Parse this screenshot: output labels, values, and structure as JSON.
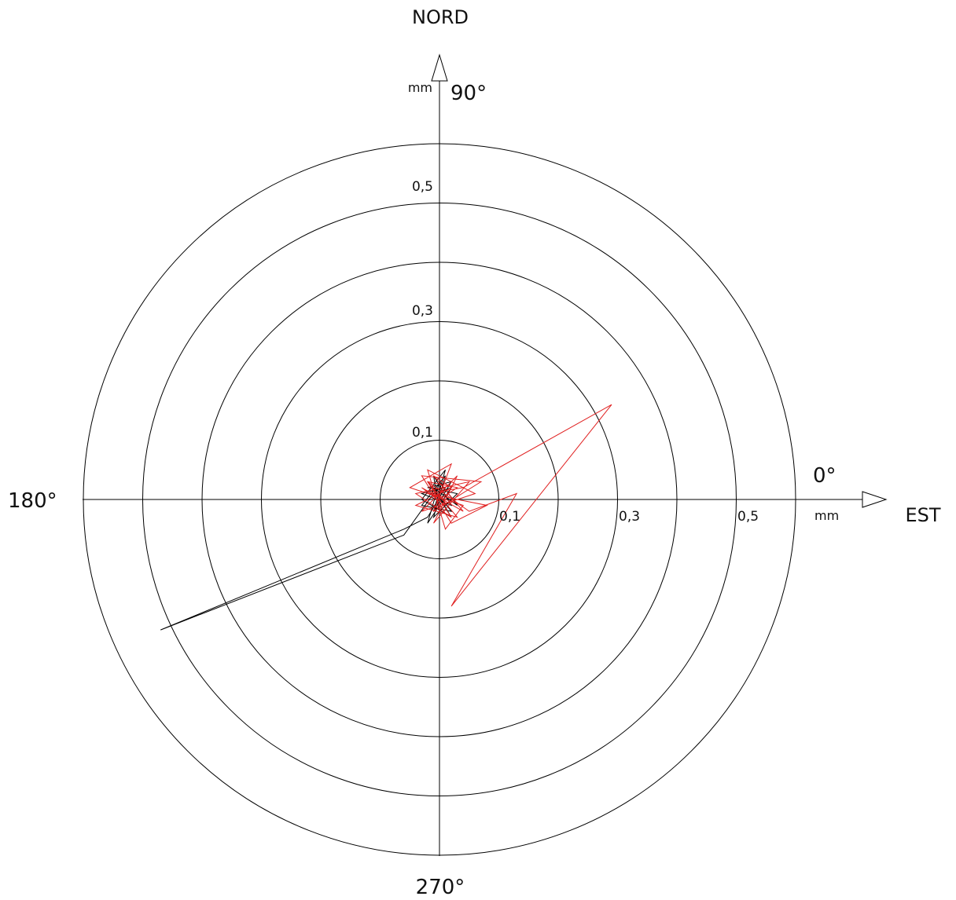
{
  "chart_data": {
    "type": "scatter",
    "subtype": "polar-displacement-trace",
    "title": "",
    "directions": {
      "north": "NORD",
      "east": "EST"
    },
    "angle_labels": {
      "a0": "0°",
      "a90": "90°",
      "a180": "180°",
      "a270": "270°"
    },
    "units": {
      "x": "mm",
      "y": "mm"
    },
    "rings_mm": [
      0.1,
      0.2,
      0.3,
      0.4,
      0.5,
      0.6
    ],
    "tick_labels": {
      "y": [
        {
          "value": 0.1,
          "label": "0,1"
        },
        {
          "value": 0.3,
          "label": "0,3"
        },
        {
          "value": 0.5,
          "label": "0,5"
        }
      ],
      "x": [
        {
          "value": 0.1,
          "label": "0,1"
        },
        {
          "value": 0.3,
          "label": "0,3"
        },
        {
          "value": 0.5,
          "label": "0,5"
        }
      ]
    },
    "xlim": [
      -0.6,
      0.6
    ],
    "ylim": [
      -0.6,
      0.6
    ],
    "grid": true,
    "colors": {
      "axes": "#000000",
      "series_black": "#000000",
      "series_red": "#e02020"
    },
    "series": [
      {
        "color": "#000000",
        "points": [
          [
            0.0,
            0.0
          ],
          [
            -0.02,
            0.03
          ],
          [
            0.02,
            -0.02
          ],
          [
            -0.03,
            -0.01
          ],
          [
            0.01,
            0.04
          ],
          [
            -0.01,
            -0.03
          ],
          [
            0.03,
            0.01
          ],
          [
            -0.02,
            0.02
          ],
          [
            0.02,
            0.03
          ],
          [
            -0.01,
            -0.02
          ],
          [
            0.01,
            0.05
          ],
          [
            -0.03,
            0.0
          ],
          [
            0.02,
            -0.03
          ],
          [
            -0.01,
            0.02
          ],
          [
            0.03,
            -0.01
          ],
          [
            0.0,
            0.03
          ],
          [
            -0.02,
            -0.04
          ],
          [
            0.02,
            0.02
          ],
          [
            -0.01,
            0.01
          ],
          [
            -0.06,
            -0.06
          ],
          [
            -0.47,
            -0.22
          ],
          [
            -0.06,
            -0.05
          ],
          [
            -0.02,
            -0.03
          ],
          [
            0.01,
            0.02
          ],
          [
            -0.03,
            0.01
          ],
          [
            0.02,
            -0.01
          ],
          [
            -0.01,
            0.04
          ],
          [
            0.0,
            -0.02
          ]
        ]
      },
      {
        "color": "#e02020",
        "points": [
          [
            0.0,
            0.0
          ],
          [
            0.03,
            0.02
          ],
          [
            -0.02,
            0.03
          ],
          [
            0.02,
            -0.03
          ],
          [
            -0.04,
            0.01
          ],
          [
            0.05,
            0.03
          ],
          [
            -0.01,
            -0.04
          ],
          [
            0.03,
            0.04
          ],
          [
            -0.03,
            -0.02
          ],
          [
            0.06,
            0.01
          ],
          [
            -0.02,
            0.05
          ],
          [
            0.01,
            -0.05
          ],
          [
            0.04,
            -0.01
          ],
          [
            -0.05,
            0.02
          ],
          [
            0.02,
            0.06
          ],
          [
            -0.01,
            -0.02
          ],
          [
            0.07,
            0.03
          ],
          [
            -0.03,
            0.04
          ],
          [
            0.02,
            -0.04
          ],
          [
            0.08,
            -0.01
          ],
          [
            -0.02,
            0.01
          ],
          [
            0.04,
            0.02
          ],
          [
            0.29,
            0.16
          ],
          [
            0.02,
            -0.18
          ],
          [
            0.13,
            0.01
          ],
          [
            0.05,
            -0.02
          ],
          [
            -0.02,
            0.03
          ],
          [
            0.03,
            -0.03
          ],
          [
            -0.04,
            -0.01
          ],
          [
            0.02,
            0.02
          ],
          [
            -0.01,
            0.04
          ],
          [
            0.04,
            -0.02
          ],
          [
            -0.03,
            0.02
          ],
          [
            0.01,
            -0.01
          ]
        ]
      }
    ]
  }
}
